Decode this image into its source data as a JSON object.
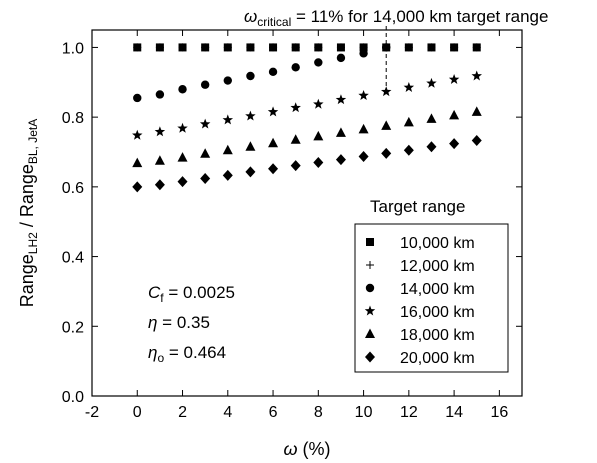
{
  "chart_data": {
    "type": "scatter",
    "xlabel_symbol": "ω",
    "xlabel_unit": "(%)",
    "ylabel": {
      "main": "Range",
      "sub1": "LH2",
      "slash": " / Range",
      "sub2": "BL, JetA"
    },
    "xlim": [
      -2,
      17
    ],
    "ylim": [
      0,
      1.05
    ],
    "xticks": [
      -2,
      0,
      2,
      4,
      6,
      8,
      10,
      12,
      14,
      16
    ],
    "xtick_labels": [
      "-2",
      "0",
      "2",
      "4",
      "6",
      "8",
      "10",
      "12",
      "14",
      "16"
    ],
    "yticks": [
      0,
      0.2,
      0.4,
      0.6,
      0.8,
      1.0
    ],
    "ytick_labels": [
      "0.0",
      "0.2",
      "0.4",
      "0.6",
      "0.8",
      "1.0"
    ],
    "legend": {
      "title": "Target range",
      "position": "right"
    },
    "series": [
      {
        "name": "10,000 km",
        "marker": "square",
        "x": [
          0,
          1,
          2,
          3,
          4,
          5,
          6,
          7,
          8,
          9,
          10,
          11,
          12,
          13,
          14,
          15
        ],
        "y": [
          1.0,
          1.0,
          1.0,
          1.0,
          1.0,
          1.0,
          1.0,
          1.0,
          1.0,
          1.0,
          1.0,
          1.0,
          1.0,
          1.0,
          1.0,
          1.0
        ]
      },
      {
        "name": "12,000 km",
        "marker": "plus",
        "x": [
          0,
          1,
          2,
          3,
          4,
          5,
          6,
          7,
          8,
          9,
          10,
          11,
          12,
          13,
          14,
          15
        ],
        "y": [
          1.0,
          1.0,
          1.0,
          1.0,
          1.0,
          1.0,
          1.0,
          1.0,
          1.0,
          1.0,
          1.0,
          1.0,
          1.0,
          1.0,
          1.0,
          1.0
        ]
      },
      {
        "name": "14,000 km",
        "marker": "circle",
        "x": [
          0,
          1,
          2,
          3,
          4,
          5,
          6,
          7,
          8,
          9,
          10,
          11
        ],
        "y": [
          0.855,
          0.865,
          0.88,
          0.893,
          0.905,
          0.918,
          0.93,
          0.943,
          0.957,
          0.97,
          0.983,
          1.0
        ]
      },
      {
        "name": "16,000 km",
        "marker": "star",
        "x": [
          0,
          1,
          2,
          3,
          4,
          5,
          6,
          7,
          8,
          9,
          10,
          11,
          12,
          13,
          14,
          15
        ],
        "y": [
          0.748,
          0.758,
          0.768,
          0.78,
          0.792,
          0.803,
          0.815,
          0.827,
          0.837,
          0.85,
          0.862,
          0.873,
          0.885,
          0.897,
          0.908,
          0.918
        ]
      },
      {
        "name": "18,000 km",
        "marker": "triangle",
        "x": [
          0,
          1,
          2,
          3,
          4,
          5,
          6,
          7,
          8,
          9,
          10,
          11,
          12,
          13,
          14,
          15
        ],
        "y": [
          0.668,
          0.675,
          0.684,
          0.695,
          0.705,
          0.715,
          0.725,
          0.735,
          0.745,
          0.755,
          0.765,
          0.775,
          0.785,
          0.795,
          0.805,
          0.815
        ]
      },
      {
        "name": "20,000 km",
        "marker": "diamond",
        "x": [
          0,
          1,
          2,
          3,
          4,
          5,
          6,
          7,
          8,
          9,
          10,
          11,
          12,
          13,
          14,
          15
        ],
        "y": [
          0.6,
          0.606,
          0.615,
          0.624,
          0.633,
          0.643,
          0.652,
          0.661,
          0.67,
          0.678,
          0.687,
          0.696,
          0.705,
          0.715,
          0.724,
          0.733
        ]
      }
    ],
    "annotations": {
      "critical": {
        "symbol": "ω",
        "sub": "critical",
        "text": " = 11% for 14,000 km target range",
        "x": 11
      },
      "cf": {
        "symbol": "C",
        "sub": "f",
        "text": " = 0.0025"
      },
      "eta": {
        "symbol": "η",
        "text": " = 0.35"
      },
      "eta_o": {
        "symbol": "η",
        "sub": "o",
        "text": " = 0.464"
      }
    }
  }
}
